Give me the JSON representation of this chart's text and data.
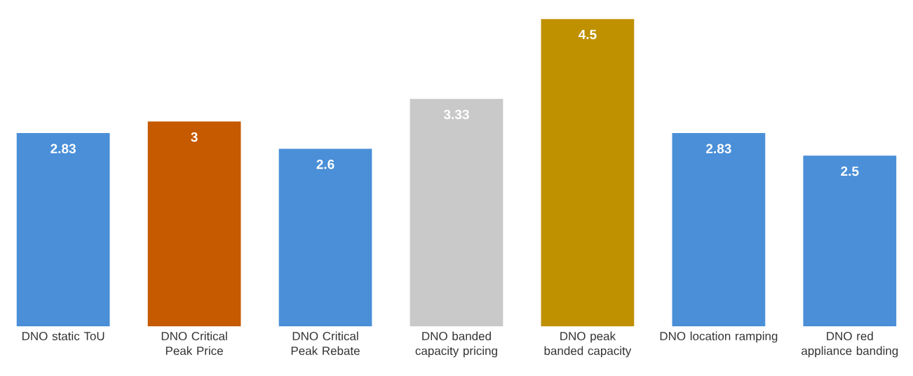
{
  "chart_data": {
    "type": "bar",
    "categories": [
      "DNO static ToU",
      "DNO Critical Peak Price",
      "DNO Critical Peak Rebate",
      "DNO banded capacity pricing",
      "DNO peak banded capacity",
      "DNO location ramping",
      "DNO red appliance banding"
    ],
    "values": [
      2.83,
      3,
      2.6,
      3.33,
      4.5,
      2.83,
      2.5
    ],
    "colors": [
      "#4a8fd8",
      "#c55a00",
      "#4a8fd8",
      "#c9c9c9",
      "#bf9000",
      "#4a8fd8",
      "#4a8fd8"
    ],
    "data_labels": true,
    "tick_labels": "x"
  }
}
